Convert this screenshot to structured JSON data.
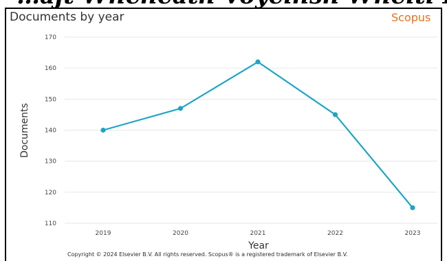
{
  "header_text": "…ajt Wheheath Voyelhsh Wheiti Herb…",
  "title": "Documents by year",
  "brand": "Scopus",
  "copyright": "Copyright © 2024 Elsevier B.V. All rights reserved. Scopus® is a registered trademark of Elsevier B.V.",
  "colors": {
    "line": "#1ba5c6",
    "brand": "#e9711c",
    "grid": "#e6e6e6"
  },
  "chart_data": {
    "type": "line",
    "title": "Documents by year",
    "xlabel": "Year",
    "ylabel": "Documents",
    "categories": [
      "2019",
      "2020",
      "2021",
      "2022",
      "2023"
    ],
    "series": [
      {
        "values": [
          140,
          147,
          162,
          145,
          115
        ]
      }
    ],
    "ylim": [
      110,
      170
    ],
    "yticks": [
      110,
      120,
      130,
      140,
      150,
      160,
      170
    ],
    "grid": true
  }
}
